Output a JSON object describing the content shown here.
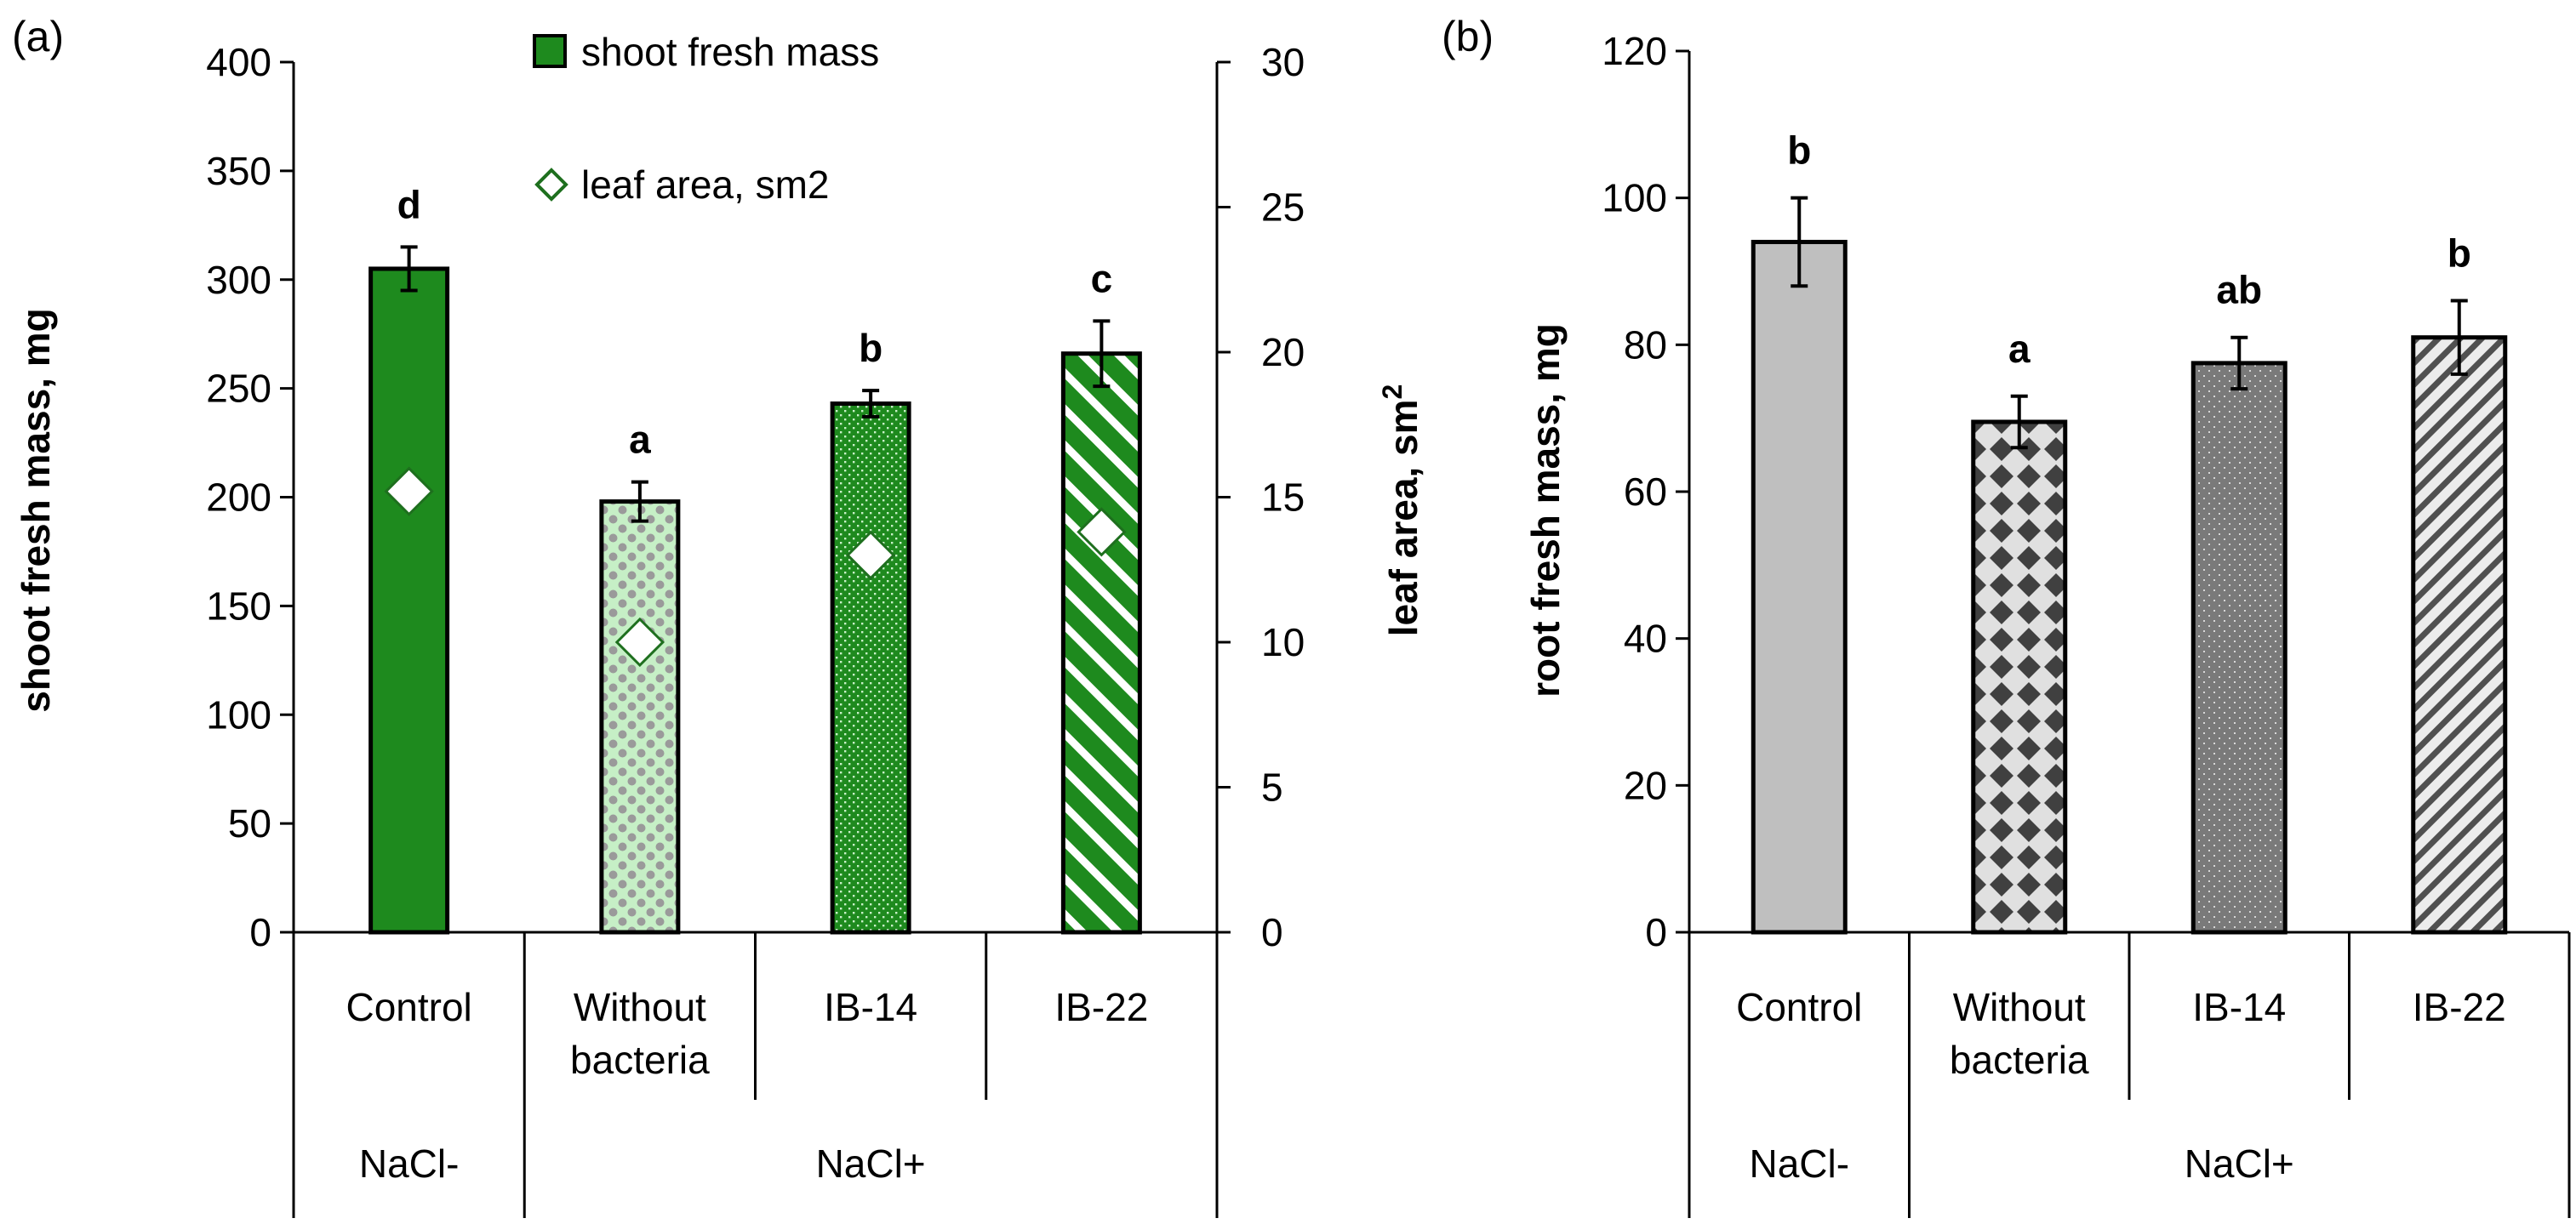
{
  "chart_data": [
    {
      "panel_label": "(a)",
      "type": "bar",
      "categories": [
        "Control",
        "Without bacteria",
        "IB-14",
        "IB-22"
      ],
      "category_lines": [
        [
          "Control"
        ],
        [
          "Without",
          "bacteria"
        ],
        [
          "IB-14"
        ],
        [
          "IB-22"
        ]
      ],
      "groups": [
        {
          "label": "NaCl-",
          "span": [
            0,
            0
          ]
        },
        {
          "label": "NaCl+",
          "span": [
            1,
            3
          ]
        }
      ],
      "series": [
        {
          "name": "shoot fresh mass",
          "axis": "left",
          "values": [
            305,
            198,
            243,
            266
          ],
          "errors": [
            10,
            9,
            6,
            15
          ],
          "significance": [
            "d",
            "a",
            "b",
            "c"
          ],
          "fill_patterns": [
            "solid",
            "checker",
            "dots",
            "stripes"
          ],
          "fill_color": "#1e8a1e"
        },
        {
          "name": "leaf area, sm2",
          "axis": "right",
          "marker": "diamond",
          "values": [
            15.2,
            10.0,
            13.0,
            13.8
          ]
        }
      ],
      "ylabel": "shoot fresh mass, mg",
      "ylabel2": "leaf area, sm",
      "ylabel2_sup": "2",
      "ylim": [
        0,
        400
      ],
      "yticks": [
        0,
        50,
        100,
        150,
        200,
        250,
        300,
        350,
        400
      ],
      "y2lim": [
        0,
        30
      ],
      "y2ticks": [
        0,
        5,
        10,
        15,
        20,
        25,
        30
      ],
      "legend": "top-center",
      "grid": false
    },
    {
      "panel_label": "(b)",
      "type": "bar",
      "categories": [
        "Control",
        "Without bacteria",
        "IB-14",
        "IB-22"
      ],
      "category_lines": [
        [
          "Control"
        ],
        [
          "Without",
          "bacteria"
        ],
        [
          "IB-14"
        ],
        [
          "IB-22"
        ]
      ],
      "groups": [
        {
          "label": "NaCl-",
          "span": [
            0,
            0
          ]
        },
        {
          "label": "NaCl+",
          "span": [
            1,
            3
          ]
        }
      ],
      "series": [
        {
          "name": "root fresh mass",
          "axis": "left",
          "values": [
            94,
            69.5,
            77.5,
            81
          ],
          "errors": [
            6,
            3.5,
            3.5,
            5
          ],
          "significance": [
            "b",
            "a",
            "ab",
            "b"
          ],
          "fill_patterns": [
            "solid",
            "diamonds",
            "dots",
            "stripes"
          ],
          "fill_color": "#bfbfbf"
        }
      ],
      "ylabel": "root fresh mass, mg",
      "ylim": [
        0,
        120
      ],
      "yticks": [
        0,
        20,
        40,
        60,
        80,
        100,
        120
      ],
      "grid": false
    }
  ],
  "colors": {
    "green": "#1e8a1e",
    "light_green": "#c6efc6",
    "checker_dot": "#9a9a9a",
    "light_gray": "#bfbfbf",
    "mid_gray": "#7a7a7a",
    "dark_gray": "#404040"
  }
}
